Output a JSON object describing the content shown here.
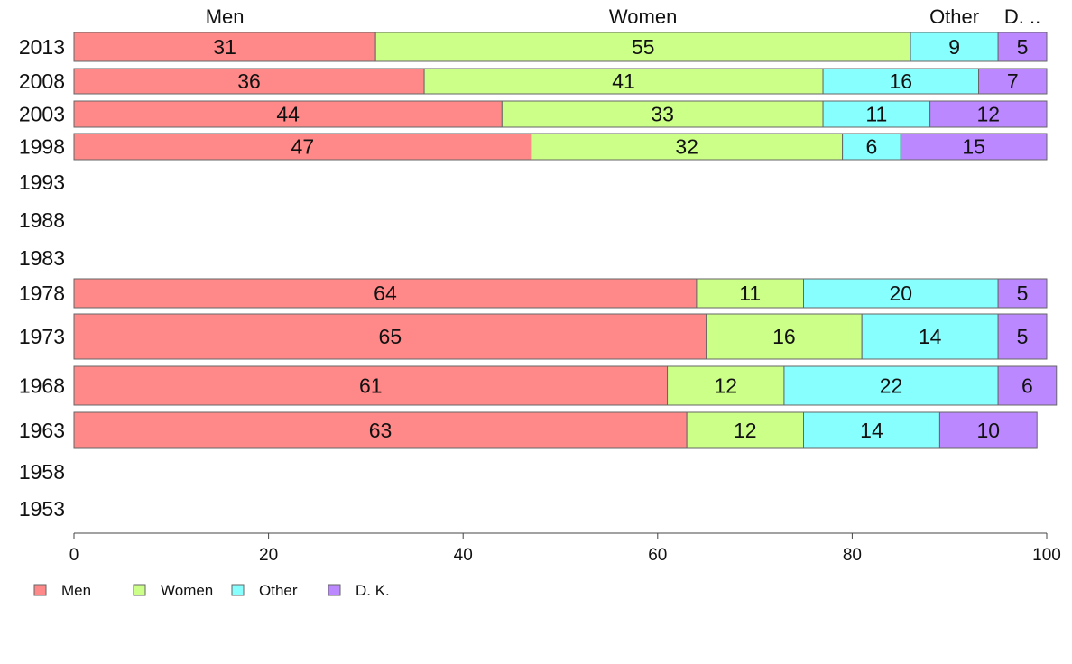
{
  "chart_data": {
    "type": "bar",
    "orientation": "horizontal",
    "stacked": true,
    "title": "",
    "xlabel": "",
    "ylabel": "",
    "xlim": [
      0,
      100
    ],
    "x_ticks": [
      "0",
      "20",
      "40",
      "60",
      "80",
      "100"
    ],
    "x_tick_values": [
      0,
      20,
      40,
      60,
      80,
      100
    ],
    "grid": false,
    "legend_position": "bottom-left",
    "top_labels": [
      "Men",
      "Women",
      "Other",
      "D. .."
    ],
    "categories": [
      "2013",
      "2008",
      "2003",
      "1998",
      "1993",
      "1988",
      "1983",
      "1978",
      "1973",
      "1968",
      "1963",
      "1958",
      "1953"
    ],
    "series": [
      {
        "name": "Men",
        "color": "#ff8888",
        "values": [
          31,
          36,
          44,
          47,
          null,
          null,
          null,
          64,
          65,
          61,
          63,
          null,
          null
        ]
      },
      {
        "name": "Women",
        "color": "#ccff88",
        "values": [
          55,
          41,
          33,
          32,
          null,
          null,
          null,
          11,
          16,
          12,
          12,
          null,
          null
        ]
      },
      {
        "name": "Other",
        "color": "#88ffff",
        "values": [
          9,
          16,
          11,
          6,
          null,
          null,
          null,
          20,
          14,
          22,
          14,
          null,
          null
        ]
      },
      {
        "name": "D. K.",
        "color": "#bb88ff",
        "values": [
          5,
          7,
          12,
          15,
          null,
          null,
          null,
          5,
          5,
          6,
          10,
          null,
          null
        ]
      }
    ]
  }
}
